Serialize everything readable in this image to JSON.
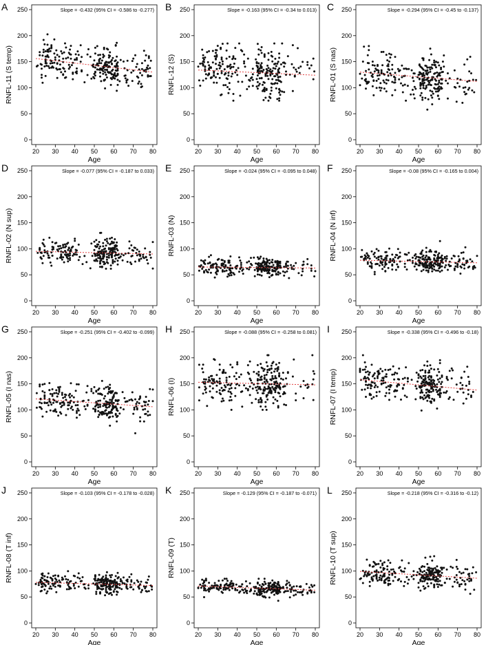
{
  "colors": {
    "points": "#111111",
    "fit_line": "#e23a3a",
    "frame": "#000000"
  },
  "chart_data": [
    {
      "type": "scatter",
      "panel_label": "A",
      "ylabel": "RNFL-11 (S temp)",
      "xlabel": "Age",
      "slope_text": "Slope = -0.432 (95% CI = -0.586 to -0.277)",
      "xlim": [
        20,
        80
      ],
      "ylim": [
        0,
        250
      ],
      "x_ticks": [
        20,
        30,
        40,
        50,
        60,
        70,
        80
      ],
      "y_ticks": [
        0,
        50,
        100,
        150,
        200,
        250
      ],
      "fit": {
        "slope": -0.432,
        "start": [
          20,
          156
        ],
        "end": [
          80,
          130
        ]
      },
      "points": {
        "n": 300,
        "center": 145,
        "spread": 18,
        "min": 70,
        "max": 220
      }
    },
    {
      "type": "scatter",
      "panel_label": "B",
      "ylabel": "RNFL-12 (S)",
      "xlabel": "Age",
      "slope_text": "Slope = -0.163 (95% CI = -0.34 to 0.013)",
      "xlim": [
        20,
        80
      ],
      "ylim": [
        0,
        250
      ],
      "x_ticks": [
        20,
        30,
        40,
        50,
        60,
        70,
        80
      ],
      "y_ticks": [
        0,
        50,
        100,
        150,
        200,
        250
      ],
      "fit": {
        "slope": -0.163,
        "start": [
          20,
          134
        ],
        "end": [
          80,
          124
        ]
      },
      "points": {
        "n": 300,
        "center": 128,
        "spread": 23,
        "min": 75,
        "max": 185
      }
    },
    {
      "type": "scatter",
      "panel_label": "C",
      "ylabel": "RNFL-01 (S nas)",
      "xlabel": "Age",
      "slope_text": "Slope = -0.294 (95% CI = -0.45 to -0.137)",
      "xlim": [
        20,
        80
      ],
      "ylim": [
        0,
        250
      ],
      "x_ticks": [
        20,
        30,
        40,
        50,
        60,
        70,
        80
      ],
      "y_ticks": [
        0,
        50,
        100,
        150,
        200,
        250
      ],
      "fit": {
        "slope": -0.294,
        "start": [
          20,
          130
        ],
        "end": [
          80,
          112
        ]
      },
      "points": {
        "n": 300,
        "center": 122,
        "spread": 20,
        "min": 58,
        "max": 190
      }
    },
    {
      "type": "scatter",
      "panel_label": "D",
      "ylabel": "RNFL-02 (N sup)",
      "xlabel": "Age",
      "slope_text": "Slope = -0.077 (95% CI = -0.187 to 0.033)",
      "xlim": [
        20,
        80
      ],
      "ylim": [
        0,
        250
      ],
      "x_ticks": [
        20,
        30,
        40,
        50,
        60,
        70,
        80
      ],
      "y_ticks": [
        0,
        50,
        100,
        150,
        200,
        250
      ],
      "fit": {
        "slope": -0.077,
        "start": [
          20,
          95
        ],
        "end": [
          80,
          90
        ]
      },
      "points": {
        "n": 300,
        "center": 93,
        "spread": 13,
        "min": 50,
        "max": 135
      }
    },
    {
      "type": "scatter",
      "panel_label": "E",
      "ylabel": "RNFL-03 (N)",
      "xlabel": "Age",
      "slope_text": "Slope = -0.024 (95% CI = -0.095 to 0.048)",
      "xlim": [
        20,
        80
      ],
      "ylim": [
        0,
        250
      ],
      "x_ticks": [
        20,
        30,
        40,
        50,
        60,
        70,
        80
      ],
      "y_ticks": [
        0,
        50,
        100,
        150,
        200,
        250
      ],
      "fit": {
        "slope": -0.024,
        "start": [
          20,
          65
        ],
        "end": [
          80,
          63
        ]
      },
      "points": {
        "n": 300,
        "center": 64,
        "spread": 9,
        "min": 42,
        "max": 100
      }
    },
    {
      "type": "scatter",
      "panel_label": "F",
      "ylabel": "RNFL-04 (N inf)",
      "xlabel": "Age",
      "slope_text": "Slope = -0.08 (95% CI = -0.165 to 0.004)",
      "xlim": [
        20,
        80
      ],
      "ylim": [
        0,
        250
      ],
      "x_ticks": [
        20,
        30,
        40,
        50,
        60,
        70,
        80
      ],
      "y_ticks": [
        0,
        50,
        100,
        150,
        200,
        250
      ],
      "fit": {
        "slope": -0.08,
        "start": [
          20,
          78
        ],
        "end": [
          80,
          73
        ]
      },
      "points": {
        "n": 300,
        "center": 76,
        "spread": 10,
        "min": 45,
        "max": 115
      }
    },
    {
      "type": "scatter",
      "panel_label": "G",
      "ylabel": "RNFL-05 (I nas)",
      "xlabel": "Age",
      "slope_text": "Slope = -0.251 (95% CI = -0.402 to -0.099)",
      "xlim": [
        20,
        80
      ],
      "ylim": [
        0,
        250
      ],
      "x_ticks": [
        20,
        30,
        40,
        50,
        60,
        70,
        80
      ],
      "y_ticks": [
        0,
        50,
        100,
        150,
        200,
        250
      ],
      "fit": {
        "slope": -0.251,
        "start": [
          20,
          121
        ],
        "end": [
          80,
          106
        ]
      },
      "points": {
        "n": 300,
        "center": 114,
        "spread": 18,
        "min": 55,
        "max": 180
      }
    },
    {
      "type": "scatter",
      "panel_label": "H",
      "ylabel": "RNFL-06 (I)",
      "xlabel": "Age",
      "slope_text": "Slope = -0.088 (95% CI = -0.258 to 0.081)",
      "xlim": [
        20,
        80
      ],
      "ylim": [
        0,
        250
      ],
      "x_ticks": [
        20,
        30,
        40,
        50,
        60,
        70,
        80
      ],
      "y_ticks": [
        0,
        50,
        100,
        150,
        200,
        250
      ],
      "fit": {
        "slope": -0.088,
        "start": [
          20,
          153
        ],
        "end": [
          80,
          148
        ]
      },
      "points": {
        "n": 300,
        "center": 150,
        "spread": 22,
        "min": 100,
        "max": 205
      }
    },
    {
      "type": "scatter",
      "panel_label": "I",
      "ylabel": "RNFL-07 (I temp)",
      "xlabel": "Age",
      "slope_text": "Slope = -0.338 (95% CI = -0.496 to -0.18)",
      "xlim": [
        20,
        80
      ],
      "ylim": [
        0,
        250
      ],
      "x_ticks": [
        20,
        30,
        40,
        50,
        60,
        70,
        80
      ],
      "y_ticks": [
        0,
        50,
        100,
        150,
        200,
        250
      ],
      "fit": {
        "slope": -0.338,
        "start": [
          20,
          158
        ],
        "end": [
          80,
          138
        ]
      },
      "points": {
        "n": 300,
        "center": 150,
        "spread": 19,
        "min": 93,
        "max": 205
      }
    },
    {
      "type": "scatter",
      "panel_label": "J",
      "ylabel": "RNFL-08 (T inf)",
      "xlabel": "Age",
      "slope_text": "Slope = -0.103 (95% CI = -0.178 to -0.028)",
      "xlim": [
        20,
        80
      ],
      "ylim": [
        0,
        250
      ],
      "x_ticks": [
        20,
        30,
        40,
        50,
        60,
        70,
        80
      ],
      "y_ticks": [
        0,
        50,
        100,
        150,
        200,
        250
      ],
      "fit": {
        "slope": -0.103,
        "start": [
          20,
          78
        ],
        "end": [
          80,
          72
        ]
      },
      "points": {
        "n": 300,
        "center": 75,
        "spread": 9,
        "min": 52,
        "max": 110
      }
    },
    {
      "type": "scatter",
      "panel_label": "K",
      "ylabel": "RNFL-09 (T)",
      "xlabel": "Age",
      "slope_text": "Slope = -0.129 (95% CI = -0.187 to -0.071)",
      "xlim": [
        20,
        80
      ],
      "ylim": [
        0,
        250
      ],
      "x_ticks": [
        20,
        30,
        40,
        50,
        60,
        70,
        80
      ],
      "y_ticks": [
        0,
        50,
        100,
        150,
        200,
        250
      ],
      "fit": {
        "slope": -0.129,
        "start": [
          20,
          71
        ],
        "end": [
          80,
          63
        ]
      },
      "points": {
        "n": 300,
        "center": 67,
        "spread": 7,
        "min": 42,
        "max": 85
      }
    },
    {
      "type": "scatter",
      "panel_label": "L",
      "ylabel": "RNFL-10 (T sup)",
      "xlabel": "Age",
      "slope_text": "Slope = -0.218 (95% CI = -0.316 to -0.12)",
      "xlim": [
        20,
        80
      ],
      "ylim": [
        0,
        250
      ],
      "x_ticks": [
        20,
        30,
        40,
        50,
        60,
        70,
        80
      ],
      "y_ticks": [
        0,
        50,
        100,
        150,
        200,
        250
      ],
      "fit": {
        "slope": -0.218,
        "start": [
          20,
          99
        ],
        "end": [
          80,
          86
        ]
      },
      "points": {
        "n": 300,
        "center": 93,
        "spread": 13,
        "min": 52,
        "max": 145
      }
    }
  ]
}
